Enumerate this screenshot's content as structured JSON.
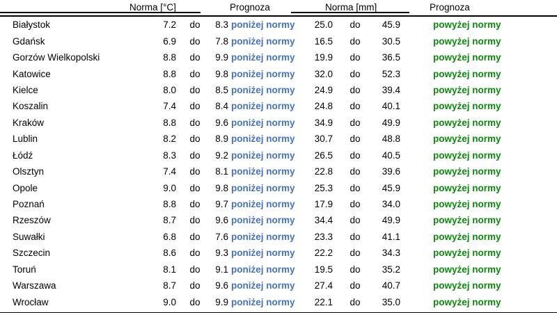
{
  "table": {
    "headers": {
      "temp_norm": "Norma [°C]",
      "temp_forecast": "Prognoza",
      "precip_norm": "Norma [mm]",
      "precip_forecast": "Prognoza"
    },
    "separator": "do",
    "colors": {
      "below_norm_text": "#4472C4",
      "above_norm_text": "#0A8A0A",
      "border": "#000000"
    },
    "rows": [
      {
        "city": "Białystok",
        "temp_low": "7.2",
        "temp_high": "8.3",
        "temp_forecast": "poniżej normy",
        "precip_low": "25.0",
        "precip_high": "45.9",
        "precip_forecast": "powyżej normy"
      },
      {
        "city": "Gdańsk",
        "temp_low": "6.9",
        "temp_high": "7.8",
        "temp_forecast": "poniżej normy",
        "precip_low": "16.5",
        "precip_high": "30.5",
        "precip_forecast": "powyżej normy"
      },
      {
        "city": "Gorzów Wielkopolski",
        "temp_low": "8.8",
        "temp_high": "9.9",
        "temp_forecast": "poniżej normy",
        "precip_low": "19.9",
        "precip_high": "36.5",
        "precip_forecast": "powyżej normy"
      },
      {
        "city": "Katowice",
        "temp_low": "8.8",
        "temp_high": "9.8",
        "temp_forecast": "poniżej normy",
        "precip_low": "32.0",
        "precip_high": "52.3",
        "precip_forecast": "powyżej normy"
      },
      {
        "city": "Kielce",
        "temp_low": "8.0",
        "temp_high": "8.5",
        "temp_forecast": "poniżej normy",
        "precip_low": "24.9",
        "precip_high": "39.4",
        "precip_forecast": "powyżej normy"
      },
      {
        "city": "Koszalin",
        "temp_low": "7.4",
        "temp_high": "8.4",
        "temp_forecast": "poniżej normy",
        "precip_low": "24.8",
        "precip_high": "40.1",
        "precip_forecast": "powyżej normy"
      },
      {
        "city": "Kraków",
        "temp_low": "8.8",
        "temp_high": "9.6",
        "temp_forecast": "poniżej normy",
        "precip_low": "34.9",
        "precip_high": "49.9",
        "precip_forecast": "powyżej normy"
      },
      {
        "city": "Lublin",
        "temp_low": "8.2",
        "temp_high": "8.9",
        "temp_forecast": "poniżej normy",
        "precip_low": "30.7",
        "precip_high": "48.8",
        "precip_forecast": "powyżej normy"
      },
      {
        "city": "Łódź",
        "temp_low": "8.3",
        "temp_high": "9.2",
        "temp_forecast": "poniżej normy",
        "precip_low": "26.5",
        "precip_high": "40.5",
        "precip_forecast": "powyżej normy"
      },
      {
        "city": "Olsztyn",
        "temp_low": "7.4",
        "temp_high": "8.1",
        "temp_forecast": "poniżej normy",
        "precip_low": "22.8",
        "precip_high": "39.6",
        "precip_forecast": "powyżej normy"
      },
      {
        "city": "Opole",
        "temp_low": "9.0",
        "temp_high": "9.8",
        "temp_forecast": "poniżej normy",
        "precip_low": "25.3",
        "precip_high": "45.9",
        "precip_forecast": "powyżej normy"
      },
      {
        "city": "Poznań",
        "temp_low": "8.8",
        "temp_high": "9.7",
        "temp_forecast": "poniżej normy",
        "precip_low": "17.9",
        "precip_high": "34.0",
        "precip_forecast": "powyżej normy"
      },
      {
        "city": "Rzeszów",
        "temp_low": "8.7",
        "temp_high": "9.6",
        "temp_forecast": "poniżej normy",
        "precip_low": "34.4",
        "precip_high": "49.9",
        "precip_forecast": "powyżej normy"
      },
      {
        "city": "Suwałki",
        "temp_low": "6.8",
        "temp_high": "7.6",
        "temp_forecast": "poniżej normy",
        "precip_low": "23.3",
        "precip_high": "41.1",
        "precip_forecast": "powyżej normy"
      },
      {
        "city": "Szczecin",
        "temp_low": "8.6",
        "temp_high": "9.3",
        "temp_forecast": "poniżej normy",
        "precip_low": "22.2",
        "precip_high": "34.3",
        "precip_forecast": "powyżej normy"
      },
      {
        "city": "Toruń",
        "temp_low": "8.1",
        "temp_high": "9.1",
        "temp_forecast": "poniżej normy",
        "precip_low": "19.5",
        "precip_high": "35.2",
        "precip_forecast": "powyżej normy"
      },
      {
        "city": "Warszawa",
        "temp_low": "8.7",
        "temp_high": "9.6",
        "temp_forecast": "poniżej normy",
        "precip_low": "27.4",
        "precip_high": "40.7",
        "precip_forecast": "powyżej normy"
      },
      {
        "city": "Wrocław",
        "temp_low": "9.0",
        "temp_high": "9.9",
        "temp_forecast": "poniżej normy",
        "precip_low": "22.1",
        "precip_high": "35.0",
        "precip_forecast": "powyżej normy"
      }
    ]
  }
}
